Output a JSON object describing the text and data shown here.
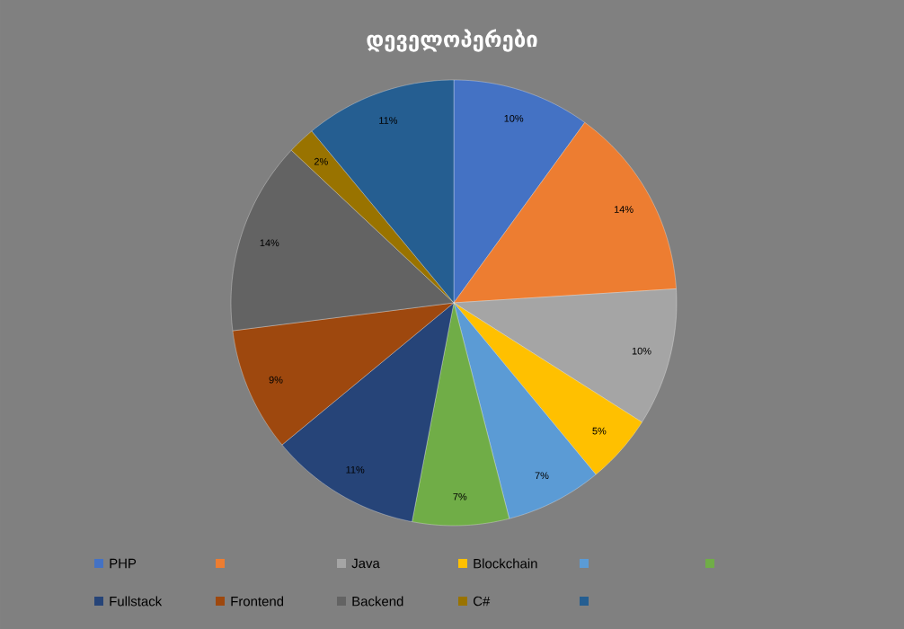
{
  "chart_data": {
    "type": "pie",
    "title": "დეველოპერები",
    "categories": [
      "PHP",
      null,
      "Java",
      "Blockchain",
      null,
      null,
      "Fullstack",
      "Frontend",
      "Backend",
      "C#",
      null
    ],
    "values": [
      10,
      14,
      10,
      5,
      7,
      7,
      11,
      9,
      14,
      2,
      11
    ],
    "value_labels": [
      "10%",
      "14%",
      "10%",
      "5%",
      "7%",
      "7%",
      "11%",
      "9%",
      "14%",
      "2%",
      "11%"
    ],
    "colors": [
      "#4472c4",
      "#ed7d31",
      "#a5a5a5",
      "#ffc000",
      "#5b9bd5",
      "#70ad47",
      "#264478",
      "#9e480e",
      "#636363",
      "#997300",
      "#255e91"
    ],
    "legend": "bottom"
  }
}
